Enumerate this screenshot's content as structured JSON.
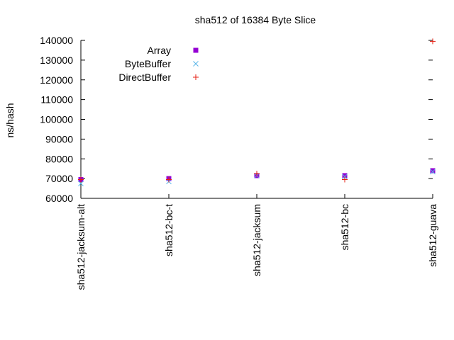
{
  "chart_data": {
    "type": "scatter",
    "title": "sha512 of 16384 Byte Slice",
    "xlabel": "",
    "ylabel": "ns/hash",
    "categories": [
      "sha512-jacksum-alt",
      "sha512-bc-t",
      "sha512-jacksum",
      "sha512-bc",
      "sha512-guava"
    ],
    "ylim": [
      60000,
      140000
    ],
    "yticks": [
      60000,
      70000,
      80000,
      90000,
      100000,
      110000,
      120000,
      130000,
      140000
    ],
    "legend_position": "top-left",
    "grid": false,
    "series": [
      {
        "name": "Array",
        "marker": "square",
        "color": "#9400d3",
        "values": [
          69500,
          70000,
          71500,
          71500,
          74000
        ]
      },
      {
        "name": "ByteBuffer",
        "marker": "x",
        "color": "#56b4e9",
        "values": [
          67500,
          68500,
          71500,
          71000,
          73500
        ]
      },
      {
        "name": "DirectBuffer",
        "marker": "plus",
        "color": "#e51e10",
        "values": [
          69500,
          69500,
          72500,
          69500,
          139500
        ]
      }
    ]
  }
}
